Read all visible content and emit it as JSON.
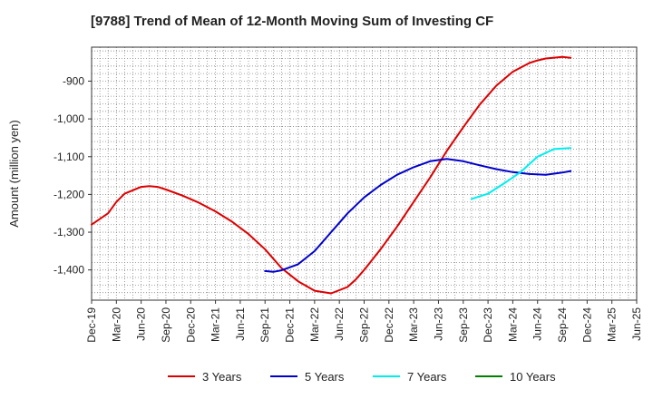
{
  "chart_data": {
    "type": "line",
    "title": "[9788]  Trend of Mean of 12-Month Moving Sum of Investing CF",
    "xlabel": "",
    "ylabel": "Amount (million yen)",
    "ylim": [
      -1480,
      -810
    ],
    "y_ticks": [
      -900,
      -1000,
      -1100,
      -1200,
      -1300,
      -1400
    ],
    "y_tick_labels": [
      "-900",
      "-1,000",
      "-1,100",
      "-1,200",
      "-1,300",
      "-1,400"
    ],
    "x_ticks": [
      0,
      3,
      6,
      9,
      12,
      15,
      18,
      21,
      24,
      27,
      30,
      33,
      36,
      39,
      42,
      45,
      48,
      51,
      54,
      57,
      60,
      63,
      66
    ],
    "x_tick_labels": [
      "Dec-19",
      "Mar-20",
      "Jun-20",
      "Sep-20",
      "Dec-20",
      "Mar-21",
      "Jun-21",
      "Sep-21",
      "Dec-21",
      "Mar-22",
      "Jun-22",
      "Sep-22",
      "Dec-22",
      "Mar-23",
      "Jun-23",
      "Sep-23",
      "Dec-23",
      "Mar-24",
      "Jun-24",
      "Sep-24",
      "Dec-24",
      "Mar-25",
      "Jun-25"
    ],
    "x_tick_display": [
      "Dec-19",
      "Mar-20",
      "Jun-20",
      "Sep-20",
      "Dec-20",
      "Mar-21",
      "Jun-21",
      "Sep-21",
      "Dec-21",
      "Mar-22",
      "Jun-22",
      "Sep-22",
      "Dec-22",
      "Mar-23",
      "Jun-23",
      "Sep-23",
      "Dec-23",
      "Mar-24",
      "Jun-24",
      "Sep-24",
      "Dec-24",
      "Mar-25",
      "Jun-25"
    ],
    "xlim": [
      0,
      66
    ],
    "grid": true,
    "legend_position": "bottom",
    "series": [
      {
        "name": "3 Years",
        "color": "#dd0000",
        "x": [
          0,
          2,
          3,
          4,
          6,
          7,
          8,
          9,
          11,
          13,
          15,
          17,
          19,
          21,
          23,
          25,
          27,
          29,
          31,
          32,
          33,
          35,
          37,
          39,
          41,
          43,
          45,
          47,
          49,
          51,
          53,
          54,
          55,
          57,
          58
        ],
        "y": [
          -1280,
          -1250,
          -1220,
          -1198,
          -1180,
          -1178,
          -1180,
          -1187,
          -1203,
          -1222,
          -1245,
          -1272,
          -1305,
          -1345,
          -1395,
          -1430,
          -1455,
          -1462,
          -1445,
          -1425,
          -1400,
          -1345,
          -1285,
          -1220,
          -1155,
          -1085,
          -1022,
          -962,
          -912,
          -875,
          -852,
          -845,
          -840,
          -836,
          -838
        ]
      },
      {
        "name": "5 Years",
        "color": "#0000cc",
        "x": [
          21,
          22,
          23,
          25,
          27,
          29,
          31,
          33,
          35,
          37,
          39,
          41,
          43,
          45,
          47,
          49,
          51,
          53,
          55,
          57,
          58
        ],
        "y": [
          -1403,
          -1405,
          -1401,
          -1385,
          -1350,
          -1300,
          -1250,
          -1208,
          -1175,
          -1148,
          -1128,
          -1112,
          -1106,
          -1112,
          -1123,
          -1133,
          -1141,
          -1146,
          -1148,
          -1142,
          -1138
        ]
      },
      {
        "name": "7 Years",
        "color": "#00eeee",
        "x": [
          46,
          48,
          50,
          52,
          54,
          56,
          58
        ],
        "y": [
          -1212,
          -1198,
          -1170,
          -1140,
          -1100,
          -1080,
          -1077
        ]
      },
      {
        "name": "10 Years",
        "color": "#008000",
        "x": [],
        "y": []
      }
    ]
  }
}
